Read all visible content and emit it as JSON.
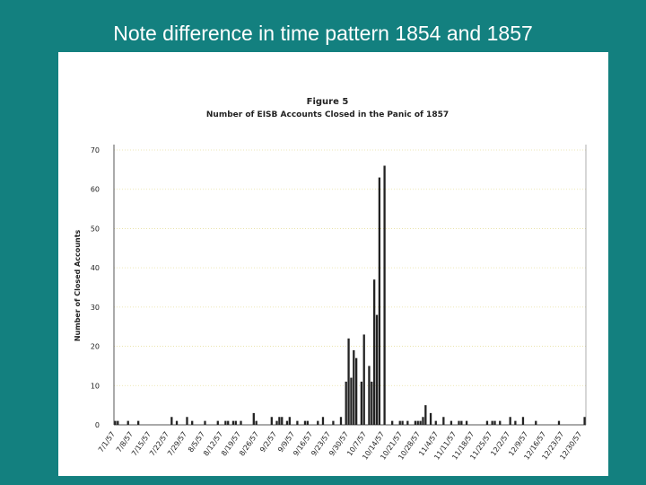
{
  "slide_title": "Note difference in time pattern 1854 and 1857",
  "chart_data": {
    "type": "bar",
    "title": "Figure 5",
    "subtitle": "Number of EISB Accounts Closed in the Panic of 1857",
    "y_label": "Number of Closed Accounts",
    "color": "#222222",
    "grid": true,
    "ylim": [
      0,
      70
    ],
    "yticks": [
      0,
      10,
      20,
      30,
      40,
      50,
      60,
      70
    ],
    "categories": [
      "7/1/57",
      null,
      null,
      null,
      null,
      null,
      null,
      "7/8/57",
      null,
      null,
      null,
      null,
      null,
      null,
      "7/15/57",
      null,
      null,
      null,
      null,
      null,
      null,
      "7/22/57",
      null,
      null,
      null,
      null,
      null,
      null,
      "7/29/57",
      null,
      null,
      null,
      null,
      null,
      null,
      "8/5/57",
      null,
      null,
      null,
      null,
      null,
      null,
      "8/12/57",
      null,
      null,
      null,
      null,
      null,
      null,
      "8/19/57",
      null,
      null,
      null,
      null,
      null,
      null,
      "8/26/57",
      null,
      null,
      null,
      null,
      null,
      null,
      "9/2/57",
      null,
      null,
      null,
      null,
      null,
      null,
      "9/9/57",
      null,
      null,
      null,
      null,
      null,
      null,
      "9/16/57",
      null,
      null,
      null,
      null,
      null,
      null,
      "9/23/57",
      null,
      null,
      null,
      null,
      null,
      null,
      "9/30/57",
      null,
      null,
      null,
      null,
      null,
      null,
      "10/7/57",
      null,
      null,
      null,
      null,
      null,
      null,
      "10/14/57",
      null,
      null,
      null,
      null,
      null,
      null,
      "10/21/57",
      null,
      null,
      null,
      null,
      null,
      null,
      "10/28/57",
      null,
      null,
      null,
      null,
      null,
      null,
      "11/4/57",
      null,
      null,
      null,
      null,
      null,
      null,
      "11/11/57",
      null,
      null,
      null,
      null,
      null,
      null,
      "11/18/57",
      null,
      null,
      null,
      null,
      null,
      null,
      "11/25/57",
      null,
      null,
      null,
      null,
      null,
      null,
      "12/2/57",
      null,
      null,
      null,
      null,
      null,
      null,
      "12/9/57",
      null,
      null,
      null,
      null,
      null,
      null,
      "12/16/57",
      null,
      null,
      null,
      null,
      null,
      null,
      "12/23/57",
      null,
      null,
      null,
      null,
      null,
      null,
      "12/30/57",
      null
    ],
    "values": [
      1,
      1,
      0,
      0,
      0,
      1,
      0,
      0,
      0,
      1,
      0,
      0,
      0,
      0,
      0,
      0,
      0,
      0,
      0,
      0,
      0,
      0,
      2,
      0,
      1,
      0,
      0,
      0,
      2,
      0,
      1,
      0,
      0,
      0,
      0,
      1,
      0,
      0,
      0,
      0,
      1,
      0,
      0,
      1,
      1,
      0,
      1,
      1,
      0,
      1,
      0,
      0,
      0,
      0,
      3,
      1,
      0,
      0,
      0,
      0,
      0,
      2,
      0,
      1,
      2,
      2,
      0,
      1,
      2,
      0,
      0,
      1,
      0,
      0,
      1,
      1,
      0,
      0,
      0,
      1,
      0,
      2,
      0,
      0,
      0,
      1,
      0,
      0,
      2,
      0,
      11,
      22,
      12,
      19,
      17,
      0,
      11,
      23,
      0,
      15,
      11,
      37,
      28,
      63,
      0,
      66,
      0,
      0,
      1,
      0,
      0,
      1,
      1,
      0,
      1,
      0,
      0,
      1,
      1,
      1,
      2,
      5,
      0,
      3,
      0,
      1,
      0,
      0,
      2,
      0,
      0,
      1,
      0,
      0,
      1,
      1,
      0,
      1,
      0,
      0,
      0,
      0,
      0,
      0,
      0,
      1,
      0,
      1,
      1,
      0,
      1,
      0,
      0,
      0,
      2,
      0,
      1,
      0,
      0,
      2,
      0,
      0,
      0,
      0,
      1,
      0,
      0,
      0,
      0,
      0,
      0,
      0,
      0,
      1,
      0,
      0,
      0,
      0,
      0,
      0,
      0,
      0,
      0,
      2
    ]
  }
}
